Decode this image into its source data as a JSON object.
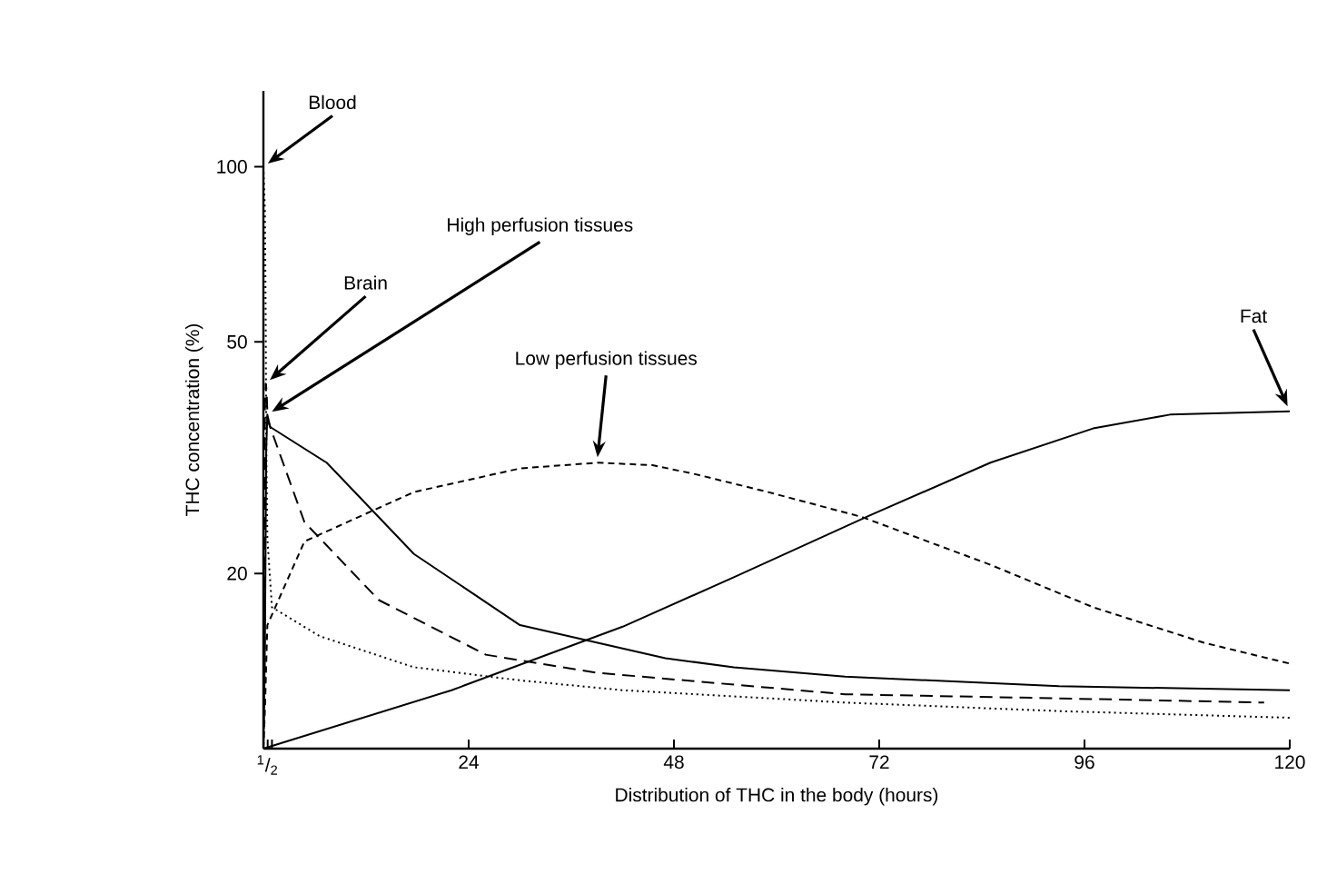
{
  "chart_data": {
    "type": "line",
    "xlabel": "Distribution of THC in the body (hours)",
    "ylabel": "THC concentration (%)",
    "log": "y",
    "xlim": [
      0,
      120
    ],
    "ylim": [
      10,
      135
    ],
    "xticks": [
      {
        "value": 0.5,
        "label": "$^{1}$/$_{2}$"
      },
      {
        "value": 1,
        "label": null
      },
      24,
      48,
      72,
      96,
      120
    ],
    "yticks": [
      20,
      50,
      100
    ],
    "grid": false,
    "legend": false,
    "marker": "none",
    "series": [
      {
        "name": "Blood",
        "color": "#000000",
        "line_style": "dotted",
        "x": [
          0,
          0.18,
          0.27,
          0.35,
          0.46,
          1,
          6.6,
          17.6,
          30,
          42,
          68,
          93,
          120
        ],
        "values": [
          100,
          84,
          54,
          32,
          23,
          17.5,
          15.6,
          13.8,
          13.1,
          12.6,
          12.0,
          11.6,
          11.3
        ]
      },
      {
        "name": "Brain",
        "color": "#000000",
        "line_style": "dashed",
        "x": [
          0,
          0.14,
          0.16,
          0.18,
          0.27,
          0.38,
          0.49,
          4.8,
          13.5,
          26,
          39,
          68,
          93,
          117
        ],
        "values": [
          10,
          13.5,
          27.6,
          38.4,
          42.4,
          41.2,
          36.7,
          24.5,
          18.0,
          14.5,
          13.5,
          12.4,
          12.2,
          12.0
        ]
      },
      {
        "name": "High perfusion tissues",
        "color": "#000000",
        "line_style": "solid",
        "x": [
          0,
          0.18,
          0.33,
          0.46,
          0.8,
          7.4,
          17.6,
          30,
          47,
          55,
          68,
          93,
          120
        ],
        "values": [
          10,
          15.2,
          32.6,
          37.5,
          35.7,
          31.0,
          21.6,
          16.3,
          14.3,
          13.8,
          13.3,
          12.8,
          12.6
        ]
      },
      {
        "name": "Low perfusion tissues",
        "color": "#000000",
        "line_style": "dashed",
        "x": [
          0,
          0.18,
          0.46,
          4.8,
          17.6,
          30,
          39,
          45.5,
          50.6,
          59,
          70,
          85,
          97,
          110,
          120
        ],
        "values": [
          10,
          11.7,
          16.3,
          22.7,
          27.6,
          30.3,
          31.0,
          30.7,
          29.6,
          27.6,
          25.0,
          20.7,
          17.5,
          15.2,
          14.0
        ]
      },
      {
        "name": "Fat",
        "color": "#000000",
        "line_style": "solid",
        "x": [
          0,
          22,
          42,
          55,
          71,
          85,
          97,
          106,
          120
        ],
        "values": [
          10,
          12.6,
          16.2,
          19.7,
          25.2,
          31.0,
          35.5,
          37.5,
          38.0
        ]
      }
    ]
  }
}
